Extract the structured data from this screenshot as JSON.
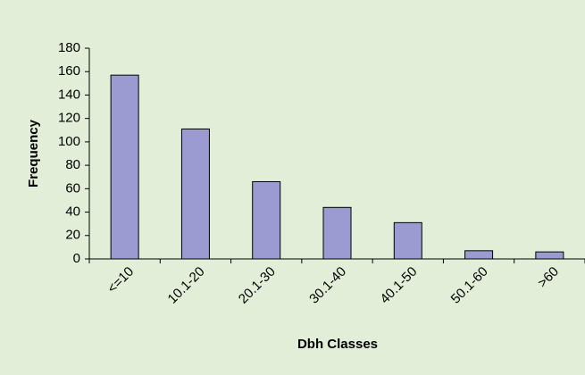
{
  "chart_data": {
    "type": "bar",
    "categories": [
      "<=10",
      "10.1-20",
      "20.1-30",
      "30.1-40",
      "40.1-50",
      "50.1-60",
      ">60"
    ],
    "values": [
      157,
      111,
      66,
      44,
      31,
      7,
      6
    ],
    "color": "#9b9bd1",
    "x_label": "Dbh Classes",
    "y_label": "Frequency",
    "ylim": [
      0,
      180
    ],
    "yticks": [
      0,
      20,
      40,
      60,
      80,
      100,
      120,
      140,
      160,
      180
    ]
  }
}
